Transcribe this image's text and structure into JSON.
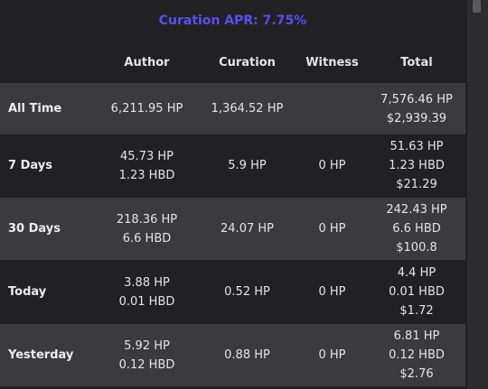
{
  "title": "Curation APR: 7.75%",
  "columns": {
    "author": "Author",
    "curation": "Curation",
    "witness": "Witness",
    "total": "Total"
  },
  "rows": [
    {
      "label": "All Time",
      "author": [
        "6,211.95 HP"
      ],
      "curation": [
        "1,364.52 HP"
      ],
      "witness": [],
      "total": [
        "7,576.46 HP",
        "$2,939.39"
      ]
    },
    {
      "label": "7 Days",
      "author": [
        "45.73 HP",
        "1.23 HBD"
      ],
      "curation": [
        "5.9 HP"
      ],
      "witness": [
        "0 HP"
      ],
      "total": [
        "51.63 HP",
        "1.23 HBD",
        "$21.29"
      ]
    },
    {
      "label": "30 Days",
      "author": [
        "218.36 HP",
        "6.6 HBD"
      ],
      "curation": [
        "24.07 HP"
      ],
      "witness": [
        "0 HP"
      ],
      "total": [
        "242.43 HP",
        "6.6 HBD",
        "$100.8"
      ]
    },
    {
      "label": "Today",
      "author": [
        "3.88 HP",
        "0.01 HBD"
      ],
      "curation": [
        "0.52 HP"
      ],
      "witness": [
        "0 HP"
      ],
      "total": [
        "4.4 HP",
        "0.01 HBD",
        "$1.72"
      ]
    },
    {
      "label": "Yesterday",
      "author": [
        "5.92 HP",
        "0.12 HBD"
      ],
      "curation": [
        "0.88 HP"
      ],
      "witness": [
        "0 HP"
      ],
      "total": [
        "6.81 HP",
        "0.12 HBD",
        "$2.76"
      ]
    }
  ],
  "colors": {
    "background": "#212124",
    "row_shade": "#3b3b3f",
    "title": "#5b4df0"
  }
}
